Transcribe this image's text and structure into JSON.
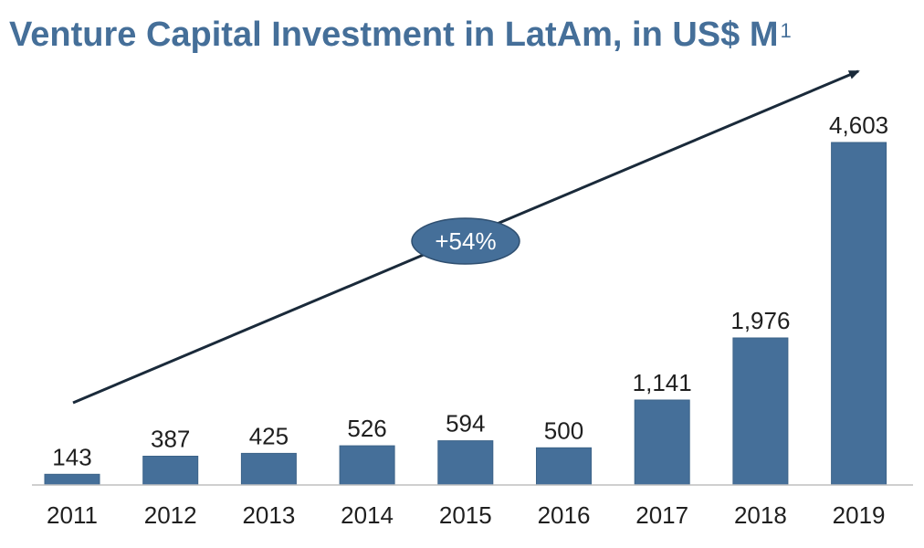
{
  "title": "Venture Capital Investment in LatAm, in US$ M",
  "title_footnote": "1",
  "growth_label": "+54%",
  "colors": {
    "title": "#456f99",
    "bar": "#456f99",
    "bar_stroke": "#3c6388",
    "text": "#1f1f1f",
    "arrow": "#1a2a3a",
    "badge": "#456f99"
  },
  "chart_data": {
    "type": "bar",
    "categories": [
      "2011",
      "2012",
      "2013",
      "2014",
      "2015",
      "2016",
      "2017",
      "2018",
      "2019"
    ],
    "values": [
      143,
      387,
      425,
      526,
      594,
      500,
      1141,
      1976,
      4603
    ],
    "value_labels": [
      "143",
      "387",
      "425",
      "526",
      "594",
      "500",
      "1,141",
      "1,976",
      "4,603"
    ],
    "title": "Venture Capital Investment in LatAm, in US$ M",
    "xlabel": "",
    "ylabel": "",
    "ylim": [
      0,
      4603
    ],
    "grid": false,
    "legend": "none",
    "annotation": "+54%"
  }
}
